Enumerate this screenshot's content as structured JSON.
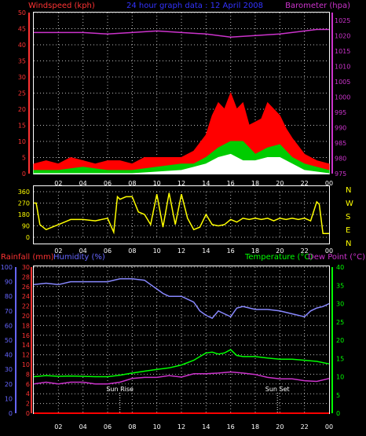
{
  "header": {
    "windspeed_label": "Windspeed (kph)",
    "title": "24 hour graph data : 12 April 2008",
    "barometer_label": "Barometer (hpa)"
  },
  "compass_letters": [
    "N",
    "W",
    "S",
    "E",
    "N"
  ],
  "bottom_labels": {
    "rainfall": "Rainfall (mm)",
    "humidity": "Humidity (%)",
    "temperature": "Temperature (°C)",
    "dewpoint": "Dew Point (°C)",
    "sunrise": "Sun Rise",
    "sunset": "Sun Set"
  },
  "colors": {
    "wind_gust": "#ff0000",
    "wind_avg": "#00cc00",
    "wind_min": "#ffffff",
    "barometer": "#cc33cc",
    "direction": "#ffff00",
    "humidity": "#8888ff",
    "temperature": "#00ff00",
    "dewpoint": "#cc33cc",
    "rainfall": "#ff0000",
    "axis_left": "#ff3333",
    "axis_right": "#cc33cc",
    "axis_humidity": "#6666ff",
    "axis_temp": "#00ff00",
    "grid": "#bbbbbb",
    "time": "#ffffff"
  },
  "chart_data": [
    {
      "type": "area",
      "title": "24 hour graph data : 12 April 2008",
      "x_ticks": [
        "02",
        "04",
        "06",
        "08",
        "10",
        "12",
        "14",
        "16",
        "18",
        "20",
        "22",
        "00"
      ],
      "y_left_label": "Windspeed (kph)",
      "y_left_ticks": [
        0,
        5,
        10,
        15,
        20,
        25,
        30,
        35,
        40,
        45,
        50
      ],
      "y_left_range": [
        0,
        50
      ],
      "y_right_label": "Barometer (hpa)",
      "y_right_ticks": [
        975,
        980,
        985,
        990,
        995,
        1000,
        1005,
        1010,
        1015,
        1020,
        1025
      ],
      "y_right_range": [
        975,
        1027.5
      ],
      "series": [
        {
          "name": "Windspeed (kph)",
          "x": [
            0,
            1,
            2,
            3,
            4,
            5,
            6,
            7,
            8,
            9,
            10,
            11,
            12,
            13,
            14,
            14.5,
            15,
            15.5,
            16,
            16.5,
            17,
            17.5,
            18,
            18.5,
            19,
            19.5,
            20,
            20.5,
            21,
            22,
            23,
            24
          ],
          "values": [
            3,
            4,
            3,
            5,
            4,
            3,
            4,
            4,
            3,
            5,
            5,
            5,
            5,
            7,
            12,
            18,
            22,
            20,
            25,
            20,
            22,
            15,
            16,
            17,
            22,
            20,
            18,
            14,
            11,
            6,
            4,
            3
          ]
        },
        {
          "name": "",
          "x": [
            0,
            2,
            4,
            6,
            8,
            10,
            12,
            13,
            14,
            15,
            16,
            17,
            18,
            19,
            20,
            21,
            22,
            23,
            24
          ],
          "values": [
            1,
            1,
            2,
            1,
            1,
            2,
            3,
            3,
            5,
            8,
            10,
            10,
            6,
            8,
            9,
            5,
            3,
            2,
            1
          ]
        },
        {
          "name": "",
          "x": [
            0,
            4,
            8,
            12,
            13,
            14,
            15,
            16,
            17,
            18,
            19,
            20,
            21,
            22,
            24
          ],
          "values": [
            0,
            0,
            0,
            1,
            2,
            3,
            5,
            6,
            4,
            4,
            5,
            5,
            3,
            1,
            0
          ]
        },
        {
          "name": "Barometer (hpa)",
          "x": [
            0,
            2,
            4,
            6,
            8,
            10,
            12,
            14,
            16,
            18,
            20,
            22,
            23,
            24
          ],
          "values": [
            1021,
            1021,
            1021,
            1020.5,
            1021,
            1021.5,
            1021,
            1020.5,
            1019.5,
            1020,
            1020.5,
            1021.5,
            1022,
            1022
          ]
        }
      ]
    },
    {
      "type": "line",
      "x_ticks": [
        "02",
        "04",
        "06",
        "08",
        "10",
        "12",
        "14",
        "16",
        "18",
        "20",
        "22",
        "00"
      ],
      "y_ticks": [
        0,
        90,
        180,
        270,
        360
      ],
      "y_range": [
        0,
        360
      ],
      "right_labels": [
        "N",
        "W",
        "S",
        "E",
        "N"
      ],
      "series": [
        {
          "name": "",
          "x": [
            0,
            0.2,
            0.5,
            1,
            1.5,
            2,
            2.5,
            3,
            4,
            5,
            6,
            6.5,
            6.8,
            7,
            7.5,
            8,
            8.5,
            9,
            9.5,
            10,
            10.5,
            11,
            11.5,
            12,
            12.5,
            13,
            13.5,
            14,
            14.5,
            15,
            15.5,
            16,
            16.5,
            17,
            17.5,
            18,
            18.5,
            19,
            19.5,
            20,
            20.5,
            21,
            21.5,
            22,
            22.5,
            23,
            23.2,
            23.5,
            24
          ],
          "values": [
            270,
            270,
            100,
            60,
            80,
            100,
            120,
            140,
            140,
            130,
            150,
            40,
            320,
            300,
            320,
            320,
            200,
            180,
            100,
            340,
            80,
            350,
            100,
            340,
            150,
            60,
            80,
            180,
            100,
            90,
            100,
            140,
            120,
            150,
            140,
            150,
            140,
            150,
            130,
            150,
            140,
            150,
            140,
            150,
            130,
            280,
            260,
            30,
            30
          ]
        }
      ]
    },
    {
      "type": "line",
      "x_ticks": [
        "02",
        "04",
        "06",
        "08",
        "10",
        "12",
        "14",
        "16",
        "18",
        "20",
        "22",
        "00"
      ],
      "y_humidity_label": "Humidity (%)",
      "y_humidity_ticks": [
        0,
        10,
        20,
        30,
        40,
        50,
        60,
        70,
        80,
        90,
        100
      ],
      "y_humidity_range": [
        0,
        100
      ],
      "y_rain_label": "Rainfall (mm)",
      "y_rain_ticks": [
        0,
        2,
        4,
        6,
        8,
        10,
        12,
        14,
        16,
        18,
        20,
        22,
        24,
        26,
        28,
        30
      ],
      "y_rain_range": [
        0,
        30
      ],
      "y_temp_label": "Temperature (°C)",
      "y_temp_label2": "Dew Point (°C)",
      "y_temp_ticks": [
        0,
        5,
        10,
        15,
        20,
        25,
        30,
        35,
        40
      ],
      "y_temp_range": [
        0,
        40
      ],
      "annotations": [
        {
          "text": "Sun Rise",
          "x": 7.0
        },
        {
          "text": "Sun Set",
          "x": 19.8
        }
      ],
      "series": [
        {
          "name": "Humidity (%)",
          "x": [
            0,
            1,
            2,
            3,
            4,
            5,
            6,
            7,
            8,
            9,
            9.5,
            10,
            10.5,
            11,
            12,
            13,
            13.5,
            14,
            14.5,
            15,
            15.5,
            16,
            16.5,
            17,
            18,
            19,
            20,
            21,
            22,
            22.5,
            23,
            23.5,
            24
          ],
          "values": [
            88,
            89,
            88,
            90,
            90,
            90,
            90,
            92,
            92,
            91,
            88,
            85,
            82,
            80,
            80,
            76,
            70,
            67,
            65,
            70,
            68,
            66,
            72,
            73,
            71,
            71,
            70,
            68,
            66,
            70,
            72,
            73,
            75
          ]
        },
        {
          "name": "Temperature (°C)",
          "x": [
            0,
            1,
            2,
            3,
            4,
            5,
            6,
            7,
            8,
            9,
            10,
            11,
            12,
            13,
            13.5,
            14,
            14.5,
            15,
            15.5,
            16,
            16.5,
            17,
            18,
            19,
            20,
            21,
            22,
            23,
            24
          ],
          "values": [
            10,
            10.3,
            10.1,
            10.2,
            10.1,
            10,
            10,
            10.4,
            11,
            11.5,
            12,
            12.4,
            13.2,
            14.5,
            15.5,
            16.5,
            16.7,
            16.2,
            16.5,
            17.4,
            15.8,
            15.5,
            15.5,
            15.1,
            14.8,
            14.8,
            14.5,
            14.2,
            13.5
          ]
        },
        {
          "name": "Dew Point (°C)",
          "x": [
            0,
            1,
            2,
            3,
            4,
            5,
            6,
            7,
            8,
            9,
            10,
            11,
            12,
            13,
            14,
            15,
            16,
            17,
            18,
            19,
            20,
            21,
            22,
            23,
            24
          ],
          "values": [
            8,
            8.5,
            8,
            8.5,
            8.5,
            8,
            8,
            8.5,
            9.5,
            9.8,
            9.8,
            10.3,
            9.9,
            10.8,
            10.8,
            11,
            11.3,
            11,
            10.6,
            9.8,
            9.4,
            9.4,
            8.9,
            8.7,
            9.5
          ]
        },
        {
          "name": "Rainfall (mm)",
          "x": [
            0,
            24
          ],
          "values": [
            0,
            0
          ]
        }
      ]
    }
  ]
}
